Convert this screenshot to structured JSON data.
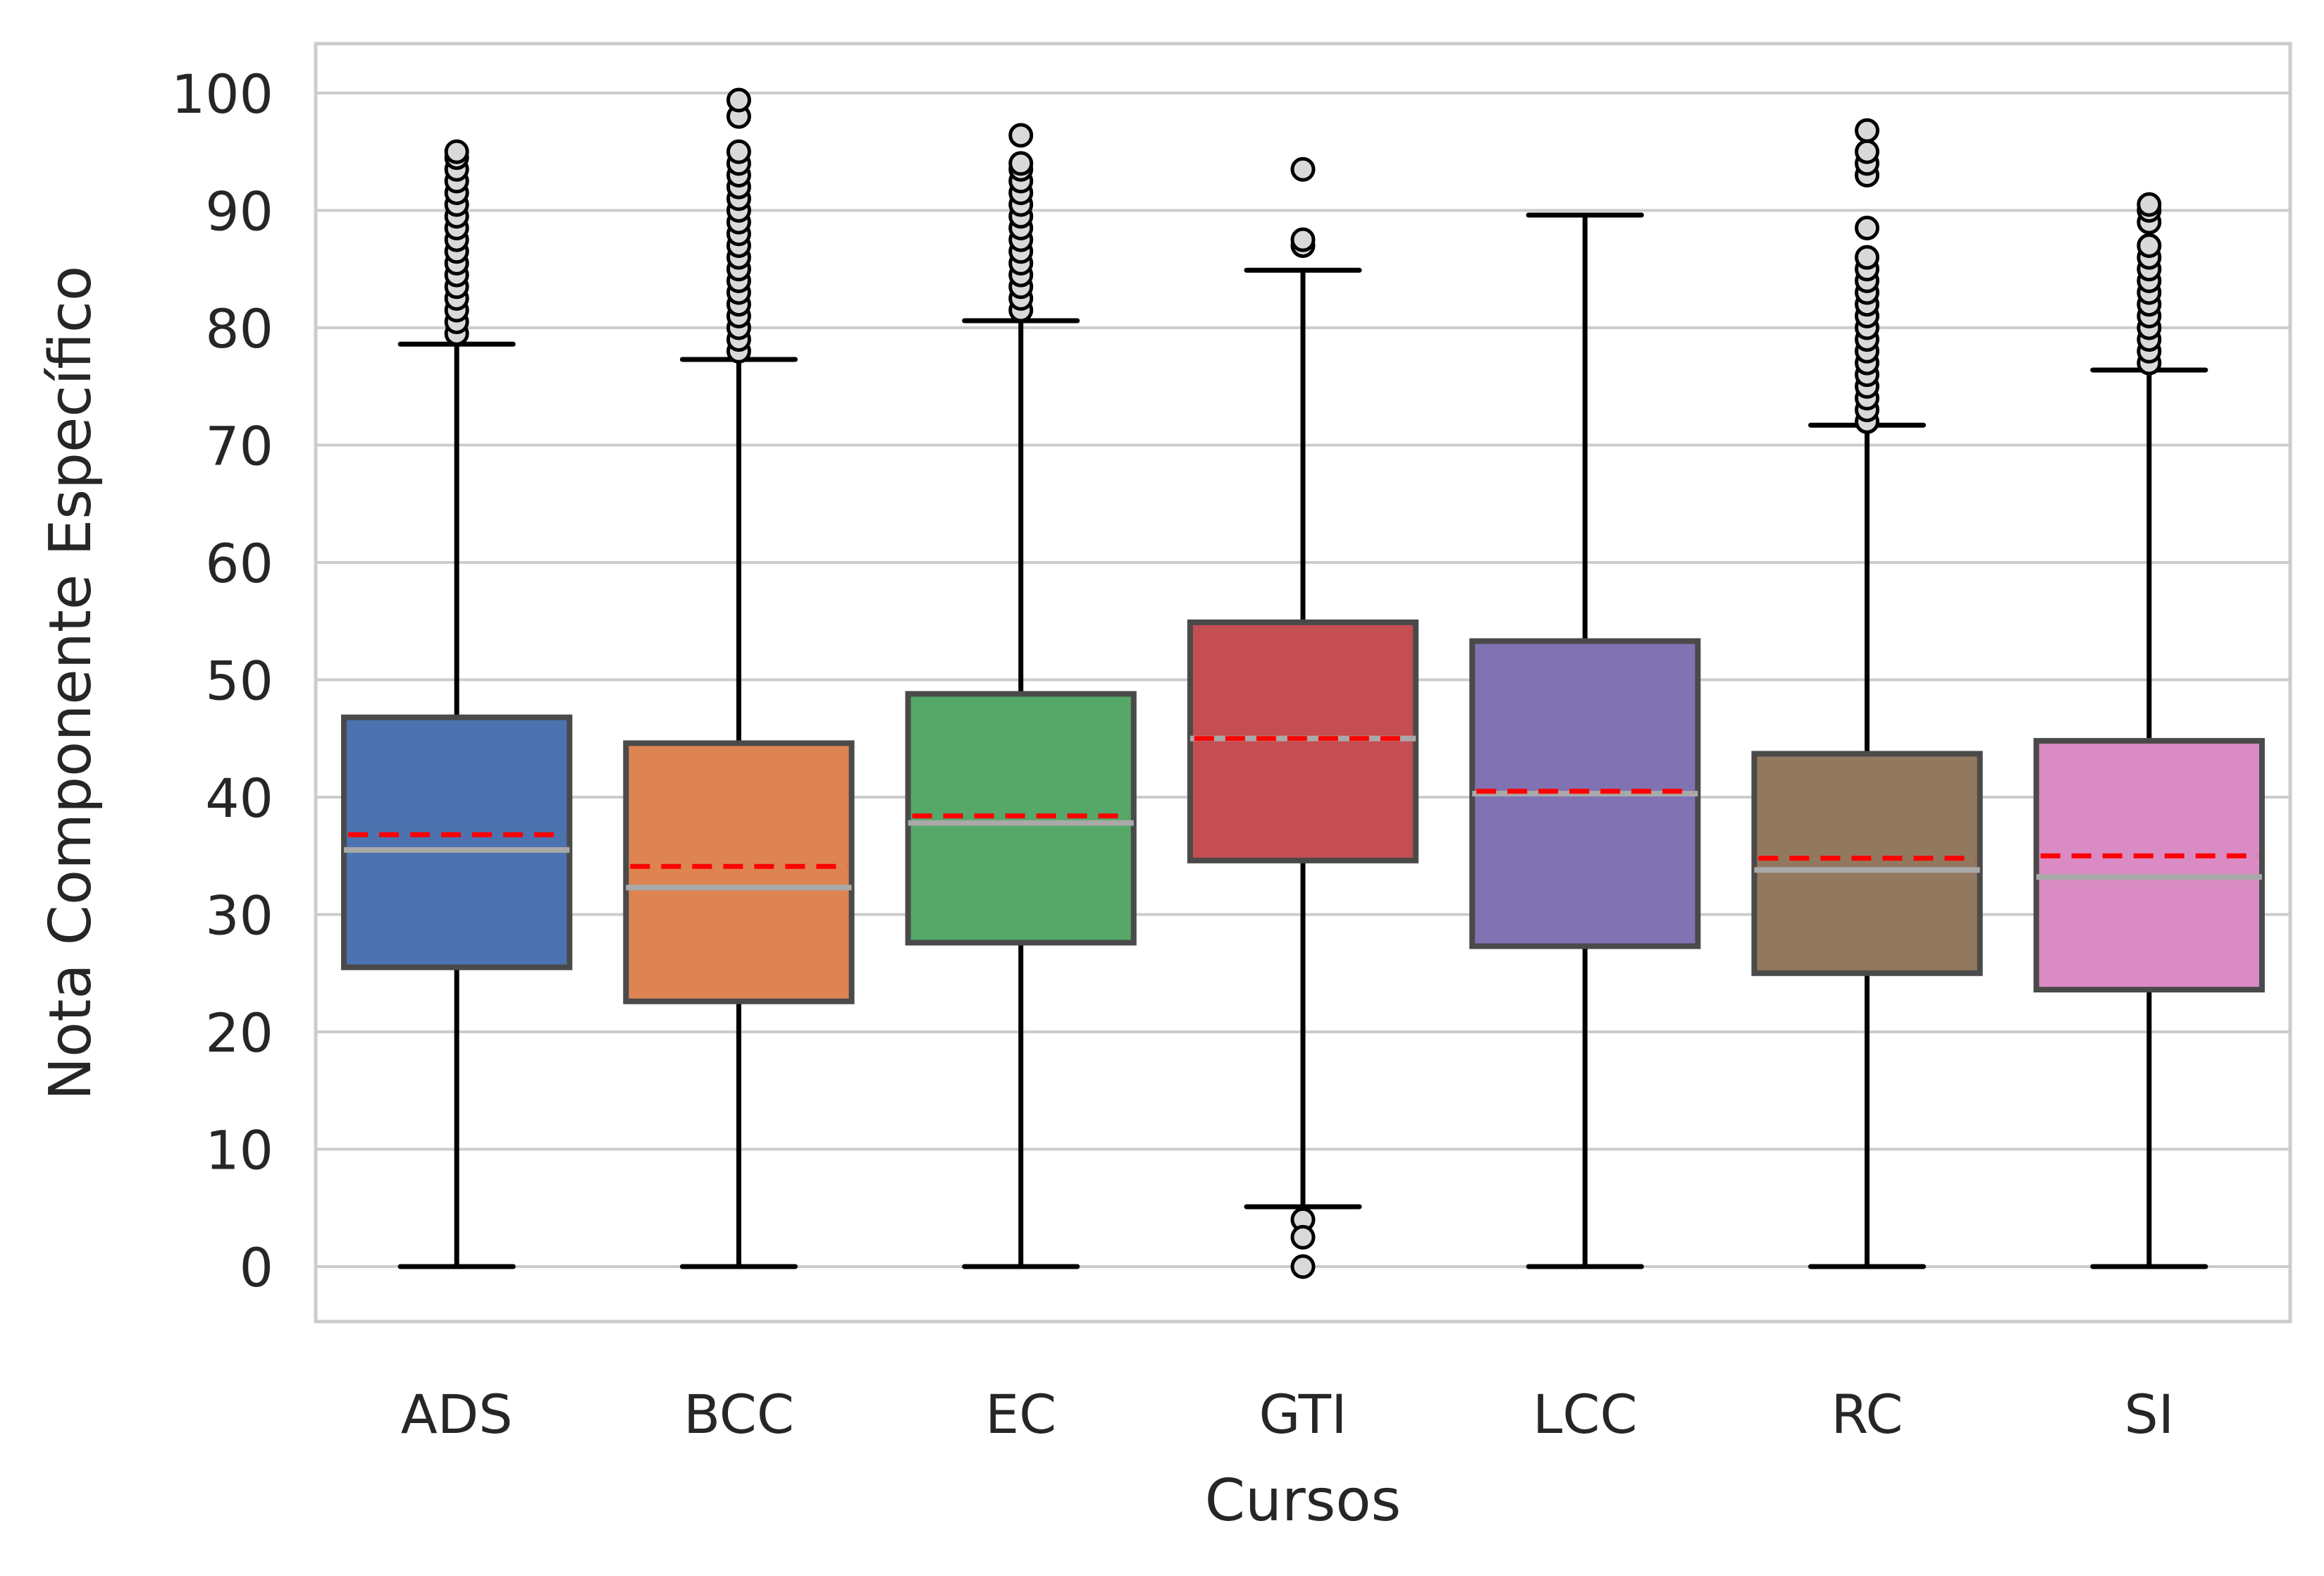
{
  "chart_data": {
    "type": "box",
    "xlabel": "Cursos",
    "ylabel": "Nota Componente Específico",
    "ylim": [
      -5,
      104
    ],
    "yticks": [
      0,
      10,
      20,
      30,
      40,
      50,
      60,
      70,
      80,
      90,
      100
    ],
    "grid": true,
    "legend": "none",
    "colors": {
      "median_line": "#a9a9a9",
      "mean_line": "#ff0000",
      "whisker": "#000000",
      "box_edge": "#4a4a4a",
      "outlier_face": "#d9d9d9",
      "grid": "#cccccc"
    },
    "categories": [
      "ADS",
      "BCC",
      "EC",
      "GTI",
      "LCC",
      "RC",
      "SI"
    ],
    "boxes": [
      {
        "category": "ADS",
        "color": "#4c72b0",
        "whislo": 0,
        "q1": 25.5,
        "median": 35.5,
        "mean": 36.8,
        "q3": 46.8,
        "whishi": 78.6,
        "fliers": [
          79.5,
          80.5,
          81.5,
          82.5,
          83.5,
          84.5,
          85.5,
          86.5,
          87.5,
          88.5,
          89.5,
          90.5,
          91.5,
          92.5,
          93.5,
          94.5,
          95
        ]
      },
      {
        "category": "BCC",
        "color": "#dd8452",
        "whislo": 0,
        "q1": 22.6,
        "median": 32.3,
        "mean": 34.1,
        "q3": 44.6,
        "whishi": 77.3,
        "fliers": [
          78,
          79,
          80,
          81,
          82,
          83,
          84,
          85,
          86,
          87,
          88,
          89,
          90,
          91,
          92,
          93,
          94,
          95,
          98,
          99.4
        ]
      },
      {
        "category": "EC",
        "color": "#55a868",
        "whislo": 0,
        "q1": 27.6,
        "median": 37.8,
        "mean": 38.4,
        "q3": 48.8,
        "whishi": 80.6,
        "fliers": [
          81.5,
          82.5,
          83.5,
          84.5,
          85.5,
          86.5,
          87.5,
          88.5,
          89.5,
          90.5,
          91.5,
          92.5,
          93.5,
          94,
          96.4
        ]
      },
      {
        "category": "GTI",
        "color": "#c44e52",
        "whislo": 5.1,
        "q1": 34.6,
        "median": 45.0,
        "mean": 45.0,
        "q3": 54.9,
        "whishi": 84.9,
        "fliers": [
          87,
          87.5,
          93.5,
          4,
          2.5,
          0
        ]
      },
      {
        "category": "LCC",
        "color": "#8172b3",
        "whislo": 0,
        "q1": 27.3,
        "median": 40.3,
        "mean": 40.5,
        "q3": 53.3,
        "whishi": 89.6,
        "fliers": []
      },
      {
        "category": "RC",
        "color": "#937860",
        "whislo": 0,
        "q1": 25.0,
        "median": 33.8,
        "mean": 34.8,
        "q3": 43.7,
        "whishi": 71.7,
        "fliers": [
          72,
          73,
          74,
          75,
          76,
          77,
          78,
          79,
          80,
          81,
          82,
          83,
          84,
          85,
          86,
          88.5,
          93,
          94,
          95,
          96.8
        ]
      },
      {
        "category": "SI",
        "color": "#da8bc3",
        "whislo": 0,
        "q1": 23.6,
        "median": 33.2,
        "mean": 35.0,
        "q3": 44.8,
        "whishi": 76.4,
        "fliers": [
          77,
          78,
          79,
          80,
          81,
          82,
          83,
          84,
          85,
          86,
          87,
          89,
          90,
          90.5
        ]
      }
    ]
  }
}
